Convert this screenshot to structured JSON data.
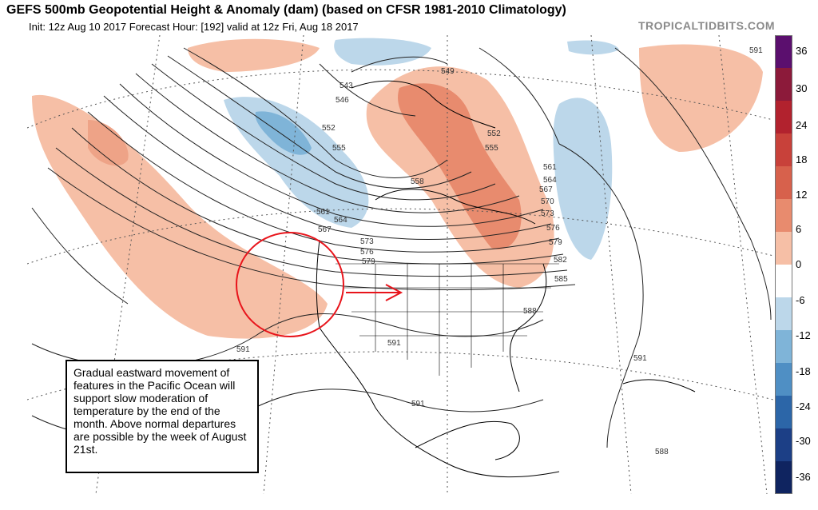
{
  "header": {
    "title": "GEFS 500mb Geopotential Height & Anomaly (dam) (based on CFSR 1981-2010 Climatology)",
    "subtitle": "Init: 12z Aug 10 2017   Forecast Hour: [192]   valid at 12z Fri, Aug 18 2017",
    "brand": "TROPICALTIDBITS.COM"
  },
  "colorbar": {
    "labels": [
      "36",
      "30",
      "24",
      "18",
      "12",
      "6",
      "0",
      "-6",
      "-12",
      "-18",
      "-24",
      "-30",
      "-36"
    ],
    "colors": [
      "#5b0f6e",
      "#8c1a3a",
      "#b2222e",
      "#c8413a",
      "#d7614c",
      "#e88b6e",
      "#f6bfa6",
      "#ffffff",
      "#bcd7ea",
      "#7fb4d8",
      "#4f8fc4",
      "#2c66a8",
      "#1c3f86",
      "#0f2460"
    ]
  },
  "contour_labels": [
    "543",
    "546",
    "549",
    "552",
    "552",
    "555",
    "555",
    "558",
    "561",
    "561",
    "564",
    "564",
    "567",
    "567",
    "570",
    "573",
    "573",
    "576",
    "576",
    "579",
    "579",
    "582",
    "585",
    "588",
    "588",
    "591",
    "591",
    "591",
    "591",
    "591"
  ],
  "annotation": {
    "text": "Gradual eastward movement of features in the Pacific Ocean will support slow moderation of temperature by the end of the month. Above normal departures are possible by the week of August 21st."
  }
}
